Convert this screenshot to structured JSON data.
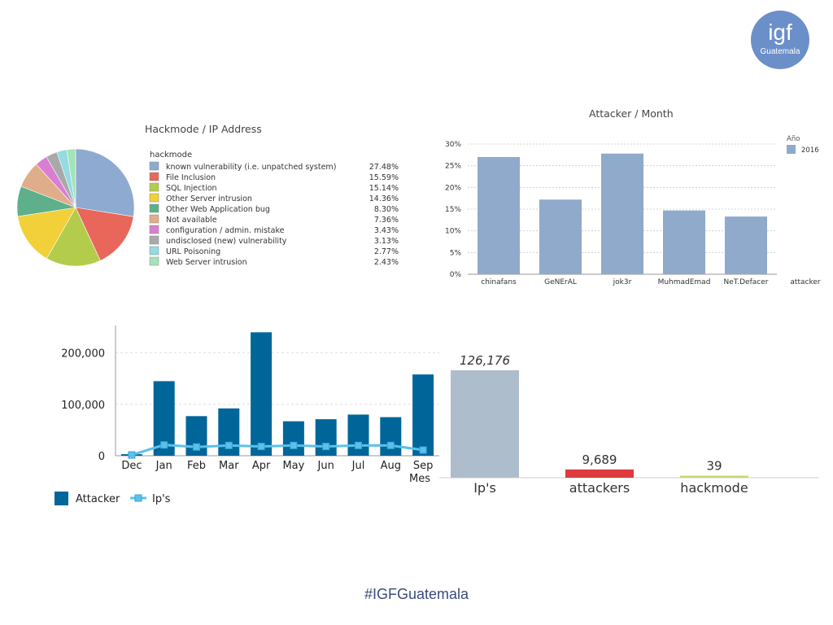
{
  "logo": {
    "main": "igf",
    "sub": "Guatemala"
  },
  "footer": {
    "hashtag": "#IGFGuatemala"
  },
  "colors": {
    "primary_bar": "#006699",
    "line": "#5bc0eb",
    "month_bar": "#8faacb",
    "summary_ips": "#aebdcc",
    "summary_attackers": "#dd3b3f",
    "summary_hackmode": "#c5d86d"
  },
  "chart_data": [
    {
      "id": "pie",
      "type": "pie",
      "title": "Hackmode / IP Address",
      "legend_title": "hackmode",
      "legend_position": "right",
      "slices": [
        {
          "label": "known vulnerability (i.e. unpatched system)",
          "pct_label": "27.48%",
          "value": 27.48,
          "color": "#8eaad0"
        },
        {
          "label": "File Inclusion",
          "pct_label": "15.59%",
          "value": 15.59,
          "color": "#e8675a"
        },
        {
          "label": "SQL Injection",
          "pct_label": "15.14%",
          "value": 15.14,
          "color": "#b4cc4b"
        },
        {
          "label": "Other Server intrusion",
          "pct_label": "14.36%",
          "value": 14.36,
          "color": "#f1d03a"
        },
        {
          "label": "Other Web Application bug",
          "pct_label": "8.30%",
          "value": 8.3,
          "color": "#5db08a"
        },
        {
          "label": "Not available",
          "pct_label": "7.36%",
          "value": 7.36,
          "color": "#e0ad8a"
        },
        {
          "label": "configuration / admin. mistake",
          "pct_label": "3.43%",
          "value": 3.43,
          "color": "#d97fd2"
        },
        {
          "label": "undisclosed (new) vulnerability",
          "pct_label": "3.13%",
          "value": 3.13,
          "color": "#a9a9a9"
        },
        {
          "label": "URL Poisoning",
          "pct_label": "2.77%",
          "value": 2.77,
          "color": "#94dbe2"
        },
        {
          "label": "Web Server intrusion",
          "pct_label": "2.43%",
          "value": 2.43,
          "color": "#a5e3b8"
        }
      ]
    },
    {
      "id": "month",
      "type": "bar",
      "title": "Attacker / Month",
      "xlabel": "attacker",
      "categories": [
        "chinafans",
        "GeNErAL",
        "jok3r",
        "MuhmadEmad",
        "NeT.Defacer"
      ],
      "series": [
        {
          "name": "2016",
          "values": [
            27,
            17.2,
            27.8,
            14.7,
            13.3
          ]
        }
      ],
      "legend_title": "Año",
      "legend_position": "top-right",
      "ylim": [
        0,
        30
      ],
      "yticks": [
        0,
        5,
        10,
        15,
        20,
        25,
        30
      ],
      "ytick_labels": [
        "0%",
        "5%",
        "10%",
        "15%",
        "20%",
        "25%",
        "30%"
      ],
      "grid": true
    },
    {
      "id": "combo",
      "type": "bar",
      "xlabel": "Mes",
      "categories": [
        "Dec",
        "Jan",
        "Feb",
        "Mar",
        "Apr",
        "May",
        "Jun",
        "Jul",
        "Aug",
        "Sep"
      ],
      "series": [
        {
          "name": "Attacker",
          "type": "bar",
          "values": [
            3000,
            145000,
            77000,
            92000,
            240000,
            67000,
            71000,
            80000,
            75000,
            158000
          ]
        },
        {
          "name": "Ip's",
          "type": "line",
          "values": [
            1500,
            21000,
            17000,
            20000,
            18000,
            20000,
            18000,
            20000,
            20000,
            11000
          ]
        }
      ],
      "ylim": [
        0,
        250000
      ],
      "yticks": [
        0,
        100000,
        200000
      ],
      "ytick_labels": [
        "0",
        "100,000",
        "200,000"
      ],
      "legend_position": "bottom-left",
      "grid": true
    },
    {
      "id": "summary",
      "type": "bar",
      "categories": [
        "Ip's",
        "attackers",
        "hackmode"
      ],
      "values": [
        126176,
        9689,
        39
      ],
      "data_labels": [
        "126,176",
        "9,689",
        "39"
      ]
    }
  ]
}
